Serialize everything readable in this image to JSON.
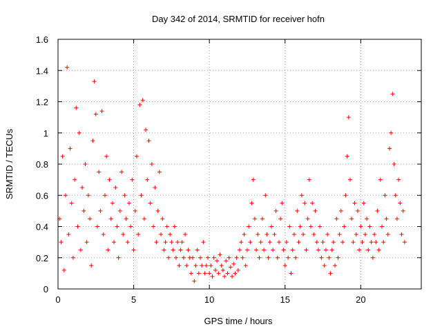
{
  "chart_data": {
    "type": "scatter",
    "title": "Day 342 of 2014, SRMTID for receiver hofn",
    "xlabel": "GPS time / hours",
    "ylabel": "SRMTID / TECUs",
    "xlim": [
      0,
      24
    ],
    "ylim": [
      0,
      1.6
    ],
    "xticks": [
      0,
      5,
      10,
      15,
      20
    ],
    "xtick_labels": [
      "0",
      "5",
      "10",
      "15",
      "20"
    ],
    "yticks": [
      0,
      0.2,
      0.4,
      0.6,
      0.8,
      1.0,
      1.2,
      1.4,
      1.6
    ],
    "ytick_labels": [
      "0",
      "0.2",
      "0.4",
      "0.6",
      "0.8",
      "1",
      "1.2",
      "1.4",
      "1.6"
    ],
    "grid": true,
    "marker": "+",
    "color": "#ff0000",
    "series": [
      {
        "name": "SRMTID",
        "points": [
          [
            0.1,
            0.45
          ],
          [
            0.2,
            0.3
          ],
          [
            0.3,
            0.85
          ],
          [
            0.4,
            0.12
          ],
          [
            0.5,
            0.6
          ],
          [
            0.6,
            1.42
          ],
          [
            0.7,
            0.35
          ],
          [
            0.8,
            0.9
          ],
          [
            0.9,
            0.55
          ],
          [
            1.0,
            0.2
          ],
          [
            1.1,
            0.7
          ],
          [
            1.2,
            1.16
          ],
          [
            1.3,
            0.4
          ],
          [
            1.4,
            1.0
          ],
          [
            1.5,
            0.25
          ],
          [
            1.6,
            0.65
          ],
          [
            1.7,
            0.5
          ],
          [
            1.8,
            0.8
          ],
          [
            1.9,
            0.3
          ],
          [
            2.0,
            0.6
          ],
          [
            2.1,
            0.45
          ],
          [
            2.2,
            0.15
          ],
          [
            2.3,
            0.95
          ],
          [
            2.4,
            1.33
          ],
          [
            2.5,
            1.12
          ],
          [
            2.6,
            0.4
          ],
          [
            2.7,
            0.75
          ],
          [
            2.8,
            0.5
          ],
          [
            2.9,
            1.14
          ],
          [
            3.0,
            0.35
          ],
          [
            3.1,
            0.6
          ],
          [
            3.2,
            0.85
          ],
          [
            3.3,
            0.25
          ],
          [
            3.4,
            0.7
          ],
          [
            3.5,
            0.45
          ],
          [
            3.6,
            0.55
          ],
          [
            3.7,
            0.3
          ],
          [
            3.8,
            0.65
          ],
          [
            3.9,
            0.4
          ],
          [
            4.0,
            0.2
          ],
          [
            4.1,
            0.5
          ],
          [
            4.2,
            0.75
          ],
          [
            4.3,
            0.35
          ],
          [
            4.4,
            0.6
          ],
          [
            4.5,
            0.45
          ],
          [
            4.6,
            0.3
          ],
          [
            4.7,
            0.55
          ],
          [
            4.8,
            0.4
          ],
          [
            4.9,
            0.7
          ],
          [
            5.0,
            0.25
          ],
          [
            5.1,
            0.5
          ],
          [
            5.2,
            0.85
          ],
          [
            5.3,
            0.35
          ],
          [
            5.4,
            1.18
          ],
          [
            5.5,
            0.6
          ],
          [
            5.6,
            1.21
          ],
          [
            5.7,
            0.45
          ],
          [
            5.8,
            1.02
          ],
          [
            5.9,
            0.7
          ],
          [
            6.0,
            0.95
          ],
          [
            6.1,
            0.55
          ],
          [
            6.2,
            0.8
          ],
          [
            6.3,
            0.4
          ],
          [
            6.4,
            0.65
          ],
          [
            6.5,
            0.3
          ],
          [
            6.6,
            0.5
          ],
          [
            6.7,
            0.75
          ],
          [
            6.8,
            0.35
          ],
          [
            6.9,
            0.45
          ],
          [
            7.0,
            0.25
          ],
          [
            7.1,
            0.3
          ],
          [
            7.2,
            0.4
          ],
          [
            7.3,
            0.2
          ],
          [
            7.4,
            0.35
          ],
          [
            7.5,
            0.3
          ],
          [
            7.6,
            0.25
          ],
          [
            7.7,
            0.4
          ],
          [
            7.8,
            0.2
          ],
          [
            7.9,
            0.3
          ],
          [
            8.0,
            0.15
          ],
          [
            8.1,
            0.25
          ],
          [
            8.2,
            0.3
          ],
          [
            8.3,
            0.2
          ],
          [
            8.4,
            0.35
          ],
          [
            8.5,
            0.15
          ],
          [
            8.6,
            0.25
          ],
          [
            8.7,
            0.2
          ],
          [
            8.8,
            0.1
          ],
          [
            8.9,
            0.2
          ],
          [
            9.0,
            0.05
          ],
          [
            9.1,
            0.15
          ],
          [
            9.2,
            0.25
          ],
          [
            9.3,
            0.1
          ],
          [
            9.4,
            0.2
          ],
          [
            9.5,
            0.15
          ],
          [
            9.6,
            0.3
          ],
          [
            9.7,
            0.1
          ],
          [
            9.8,
            0.15
          ],
          [
            9.9,
            0.2
          ],
          [
            10.0,
            0.1
          ],
          [
            10.1,
            0.15
          ],
          [
            10.2,
            0.08
          ],
          [
            10.3,
            0.2
          ],
          [
            10.4,
            0.12
          ],
          [
            10.5,
            0.18
          ],
          [
            10.6,
            0.1
          ],
          [
            10.7,
            0.22
          ],
          [
            10.8,
            0.15
          ],
          [
            10.9,
            0.12
          ],
          [
            11.0,
            0.08
          ],
          [
            11.1,
            0.18
          ],
          [
            11.2,
            0.1
          ],
          [
            11.3,
            0.2
          ],
          [
            11.4,
            0.14
          ],
          [
            11.5,
            0.08
          ],
          [
            11.6,
            0.16
          ],
          [
            11.7,
            0.1
          ],
          [
            11.8,
            0.2
          ],
          [
            11.9,
            0.12
          ],
          [
            12.0,
            0.25
          ],
          [
            12.1,
            0.3
          ],
          [
            12.2,
            0.2
          ],
          [
            12.3,
            0.35
          ],
          [
            12.4,
            0.15
          ],
          [
            12.5,
            0.25
          ],
          [
            12.6,
            0.4
          ],
          [
            12.7,
            0.3
          ],
          [
            12.8,
            0.55
          ],
          [
            12.9,
            0.7
          ],
          [
            13.0,
            0.45
          ],
          [
            13.1,
            0.25
          ],
          [
            13.2,
            0.35
          ],
          [
            13.3,
            0.2
          ],
          [
            13.4,
            0.3
          ],
          [
            13.5,
            0.45
          ],
          [
            13.6,
            0.25
          ],
          [
            13.7,
            0.6
          ],
          [
            13.8,
            0.35
          ],
          [
            13.9,
            0.2
          ],
          [
            14.0,
            0.3
          ],
          [
            14.1,
            0.4
          ],
          [
            14.2,
            0.25
          ],
          [
            14.3,
            0.35
          ],
          [
            14.4,
            0.5
          ],
          [
            14.5,
            0.2
          ],
          [
            14.6,
            0.3
          ],
          [
            14.7,
            0.45
          ],
          [
            14.8,
            0.55
          ],
          [
            14.9,
            0.25
          ],
          [
            15.0,
            0.15
          ],
          [
            15.1,
            0.3
          ],
          [
            15.2,
            0.2
          ],
          [
            15.3,
            0.4
          ],
          [
            15.4,
            0.1
          ],
          [
            15.5,
            0.25
          ],
          [
            15.6,
            0.35
          ],
          [
            15.7,
            0.2
          ],
          [
            15.8,
            0.5
          ],
          [
            15.9,
            0.3
          ],
          [
            16.0,
            0.4
          ],
          [
            16.1,
            0.6
          ],
          [
            16.2,
            0.35
          ],
          [
            16.3,
            0.55
          ],
          [
            16.4,
            0.25
          ],
          [
            16.5,
            0.45
          ],
          [
            16.6,
            0.7
          ],
          [
            16.7,
            0.4
          ],
          [
            16.8,
            0.55
          ],
          [
            16.9,
            0.35
          ],
          [
            17.0,
            0.5
          ],
          [
            17.1,
            0.3
          ],
          [
            17.2,
            0.25
          ],
          [
            17.3,
            0.4
          ],
          [
            17.4,
            0.2
          ],
          [
            17.5,
            0.3
          ],
          [
            17.6,
            0.15
          ],
          [
            17.7,
            0.25
          ],
          [
            17.8,
            0.35
          ],
          [
            17.9,
            0.2
          ],
          [
            18.0,
            0.1
          ],
          [
            18.1,
            0.25
          ],
          [
            18.2,
            0.3
          ],
          [
            18.3,
            0.15
          ],
          [
            18.4,
            0.45
          ],
          [
            18.5,
            0.2
          ],
          [
            18.6,
            0.35
          ],
          [
            18.7,
            0.5
          ],
          [
            18.8,
            0.3
          ],
          [
            18.9,
            0.4
          ],
          [
            19.0,
            0.6
          ],
          [
            19.1,
            0.85
          ],
          [
            19.2,
            1.1
          ],
          [
            19.3,
            0.7
          ],
          [
            19.4,
            0.45
          ],
          [
            19.5,
            0.3
          ],
          [
            19.6,
            0.55
          ],
          [
            19.7,
            0.35
          ],
          [
            19.8,
            0.5
          ],
          [
            19.9,
            0.25
          ],
          [
            20.0,
            0.4
          ],
          [
            20.1,
            0.3
          ],
          [
            20.2,
            0.55
          ],
          [
            20.3,
            0.35
          ],
          [
            20.4,
            0.45
          ],
          [
            20.5,
            0.25
          ],
          [
            20.6,
            0.4
          ],
          [
            20.7,
            0.3
          ],
          [
            20.8,
            0.2
          ],
          [
            20.9,
            0.35
          ],
          [
            21.0,
            0.3
          ],
          [
            21.1,
            0.5
          ],
          [
            21.2,
            0.25
          ],
          [
            21.3,
            0.7
          ],
          [
            21.4,
            0.4
          ],
          [
            21.5,
            0.3
          ],
          [
            21.6,
            0.6
          ],
          [
            21.7,
            0.45
          ],
          [
            21.8,
            0.35
          ],
          [
            21.9,
            0.9
          ],
          [
            22.0,
            1.0
          ],
          [
            22.1,
            1.25
          ],
          [
            22.2,
            0.8
          ],
          [
            22.3,
            0.6
          ],
          [
            22.4,
            0.45
          ],
          [
            22.5,
            0.7
          ],
          [
            22.6,
            0.55
          ],
          [
            22.7,
            0.35
          ],
          [
            22.8,
            0.5
          ],
          [
            22.9,
            0.3
          ]
        ]
      }
    ]
  }
}
